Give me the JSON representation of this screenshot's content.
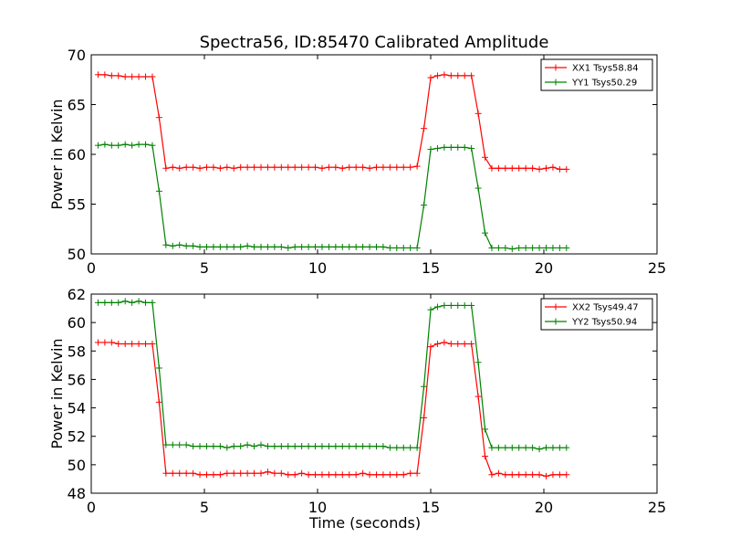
{
  "figure": {
    "title": "Spectra56, ID:85470 Calibrated Amplitude"
  },
  "chart_data": [
    {
      "type": "line",
      "title": "Spectra56, ID:85470 Calibrated Amplitude",
      "xlabel": "",
      "ylabel": "Power in Kelvin",
      "xlim": [
        0,
        25
      ],
      "ylim": [
        50,
        70
      ],
      "xticks": [
        0,
        5,
        10,
        15,
        20,
        25
      ],
      "yticks": [
        50,
        55,
        60,
        65,
        70
      ],
      "grid": false,
      "legend_position": "top-right",
      "x": [
        0.3,
        0.6,
        0.9,
        1.2,
        1.5,
        1.8,
        2.1,
        2.4,
        2.7,
        3.0,
        3.3,
        3.6,
        3.9,
        4.2,
        4.5,
        4.8,
        5.1,
        5.4,
        5.7,
        6.0,
        6.3,
        6.6,
        6.9,
        7.2,
        7.5,
        7.8,
        8.1,
        8.4,
        8.7,
        9.0,
        9.3,
        9.6,
        9.9,
        10.2,
        10.5,
        10.8,
        11.1,
        11.4,
        11.7,
        12.0,
        12.3,
        12.6,
        12.9,
        13.2,
        13.5,
        13.8,
        14.1,
        14.4,
        14.7,
        15.0,
        15.3,
        15.6,
        15.9,
        16.2,
        16.5,
        16.8,
        17.1,
        17.4,
        17.7,
        18.0,
        18.3,
        18.6,
        18.9,
        19.2,
        19.5,
        19.8,
        20.1,
        20.4,
        20.7,
        21.0
      ],
      "series": [
        {
          "name": "XX1 Tsys58.84",
          "color": "#ff0000",
          "values": [
            68.0,
            68.0,
            67.9,
            67.9,
            67.8,
            67.8,
            67.8,
            67.8,
            67.8,
            63.7,
            58.6,
            58.7,
            58.6,
            58.7,
            58.7,
            58.6,
            58.7,
            58.7,
            58.6,
            58.7,
            58.6,
            58.7,
            58.7,
            58.7,
            58.7,
            58.7,
            58.7,
            58.7,
            58.7,
            58.7,
            58.7,
            58.7,
            58.7,
            58.6,
            58.7,
            58.7,
            58.6,
            58.7,
            58.7,
            58.7,
            58.6,
            58.7,
            58.7,
            58.7,
            58.7,
            58.7,
            58.7,
            58.8,
            62.6,
            67.7,
            67.9,
            68.0,
            67.9,
            67.9,
            67.9,
            67.9,
            64.1,
            59.7,
            58.6,
            58.6,
            58.6,
            58.6,
            58.6,
            58.6,
            58.6,
            58.5,
            58.6,
            58.7,
            58.5,
            58.5
          ]
        },
        {
          "name": "YY1 Tsys50.29",
          "color": "#008000",
          "values": [
            60.9,
            61.0,
            60.9,
            60.9,
            61.0,
            60.9,
            61.0,
            61.0,
            60.9,
            56.3,
            50.9,
            50.8,
            50.9,
            50.8,
            50.8,
            50.7,
            50.7,
            50.7,
            50.7,
            50.7,
            50.7,
            50.7,
            50.8,
            50.7,
            50.7,
            50.7,
            50.7,
            50.7,
            50.6,
            50.7,
            50.7,
            50.7,
            50.7,
            50.7,
            50.7,
            50.7,
            50.7,
            50.7,
            50.7,
            50.7,
            50.7,
            50.7,
            50.7,
            50.6,
            50.6,
            50.6,
            50.6,
            50.6,
            54.9,
            60.5,
            60.6,
            60.7,
            60.7,
            60.7,
            60.7,
            60.6,
            56.6,
            52.1,
            50.6,
            50.6,
            50.6,
            50.5,
            50.6,
            50.6,
            50.6,
            50.6,
            50.6,
            50.6,
            50.6,
            50.6
          ]
        }
      ]
    },
    {
      "type": "line",
      "title": "",
      "xlabel": "Time (seconds)",
      "ylabel": "Power in Kelvin",
      "xlim": [
        0,
        25
      ],
      "ylim": [
        48,
        62
      ],
      "xticks": [
        0,
        5,
        10,
        15,
        20,
        25
      ],
      "yticks": [
        48,
        50,
        52,
        54,
        56,
        58,
        60,
        62
      ],
      "grid": false,
      "legend_position": "top-right",
      "x": [
        0.3,
        0.6,
        0.9,
        1.2,
        1.5,
        1.8,
        2.1,
        2.4,
        2.7,
        3.0,
        3.3,
        3.6,
        3.9,
        4.2,
        4.5,
        4.8,
        5.1,
        5.4,
        5.7,
        6.0,
        6.3,
        6.6,
        6.9,
        7.2,
        7.5,
        7.8,
        8.1,
        8.4,
        8.7,
        9.0,
        9.3,
        9.6,
        9.9,
        10.2,
        10.5,
        10.8,
        11.1,
        11.4,
        11.7,
        12.0,
        12.3,
        12.6,
        12.9,
        13.2,
        13.5,
        13.8,
        14.1,
        14.4,
        14.7,
        15.0,
        15.3,
        15.6,
        15.9,
        16.2,
        16.5,
        16.8,
        17.1,
        17.4,
        17.7,
        18.0,
        18.3,
        18.6,
        18.9,
        19.2,
        19.5,
        19.8,
        20.1,
        20.4,
        20.7,
        21.0
      ],
      "series": [
        {
          "name": "XX2 Tsys49.47",
          "color": "#ff0000",
          "values": [
            58.6,
            58.6,
            58.6,
            58.5,
            58.5,
            58.5,
            58.5,
            58.5,
            58.5,
            54.4,
            49.4,
            49.4,
            49.4,
            49.4,
            49.4,
            49.3,
            49.3,
            49.3,
            49.3,
            49.4,
            49.4,
            49.4,
            49.4,
            49.4,
            49.4,
            49.5,
            49.4,
            49.4,
            49.3,
            49.3,
            49.4,
            49.3,
            49.3,
            49.3,
            49.3,
            49.3,
            49.3,
            49.3,
            49.3,
            49.4,
            49.3,
            49.3,
            49.3,
            49.3,
            49.3,
            49.3,
            49.4,
            49.4,
            53.3,
            58.3,
            58.5,
            58.6,
            58.5,
            58.5,
            58.5,
            58.5,
            54.8,
            50.6,
            49.3,
            49.4,
            49.3,
            49.3,
            49.3,
            49.3,
            49.3,
            49.3,
            49.2,
            49.3,
            49.3,
            49.3
          ]
        },
        {
          "name": "YY2 Tsys50.94",
          "color": "#008000",
          "values": [
            61.4,
            61.4,
            61.4,
            61.4,
            61.5,
            61.4,
            61.5,
            61.4,
            61.4,
            56.8,
            51.4,
            51.4,
            51.4,
            51.4,
            51.3,
            51.3,
            51.3,
            51.3,
            51.3,
            51.2,
            51.3,
            51.3,
            51.4,
            51.3,
            51.4,
            51.3,
            51.3,
            51.3,
            51.3,
            51.3,
            51.3,
            51.3,
            51.3,
            51.3,
            51.3,
            51.3,
            51.3,
            51.3,
            51.3,
            51.3,
            51.3,
            51.3,
            51.3,
            51.2,
            51.2,
            51.2,
            51.2,
            51.2,
            55.5,
            60.9,
            61.1,
            61.2,
            61.2,
            61.2,
            61.2,
            61.2,
            57.2,
            52.5,
            51.2,
            51.2,
            51.2,
            51.2,
            51.2,
            51.2,
            51.2,
            51.1,
            51.2,
            51.2,
            51.2,
            51.2
          ]
        }
      ]
    }
  ]
}
